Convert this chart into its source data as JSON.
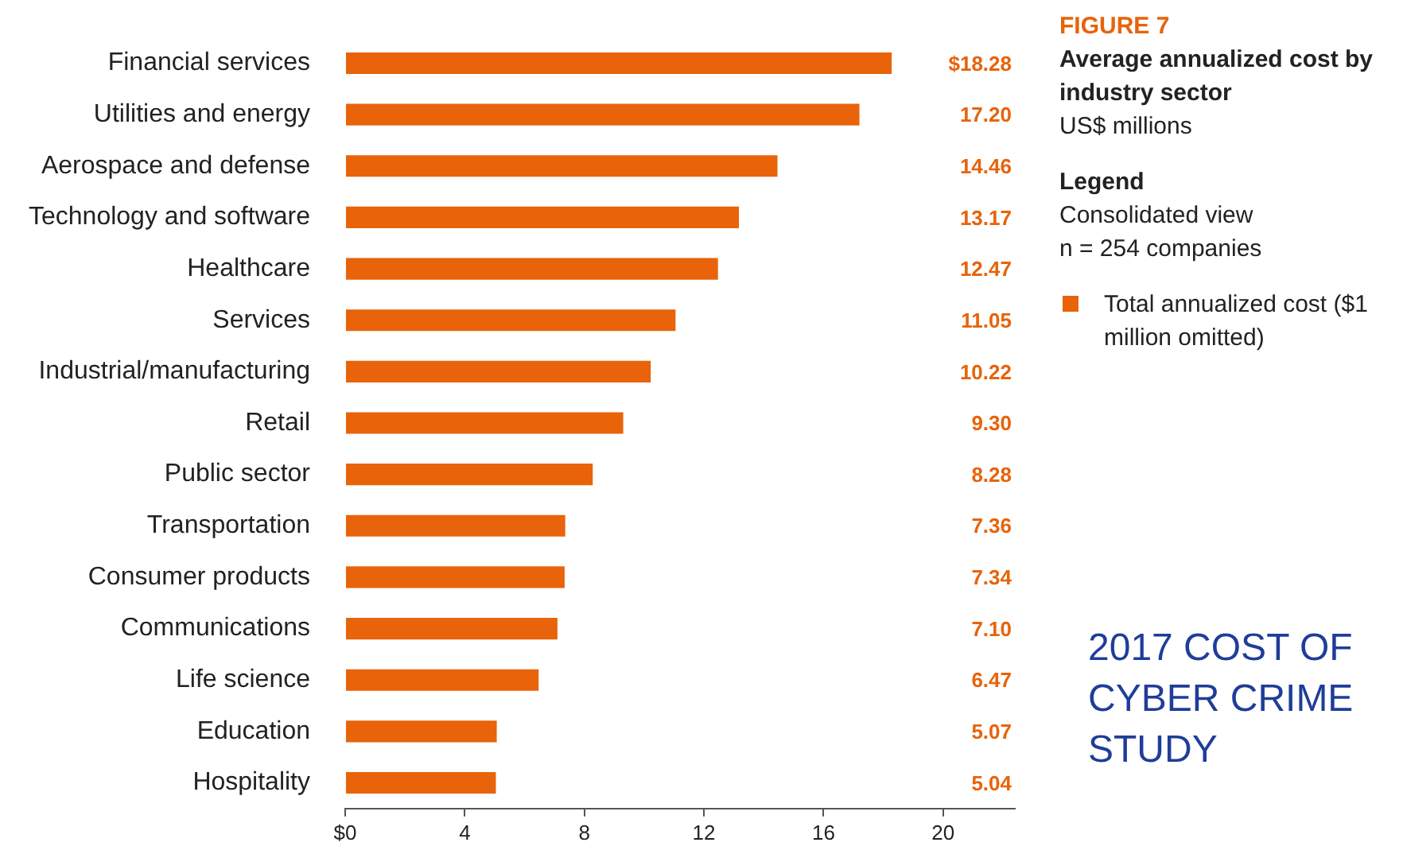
{
  "chart_data": {
    "type": "bar",
    "orientation": "horizontal",
    "title": "Average annualized cost by industry sector",
    "subtitle": "US$ millions",
    "categories": [
      "Financial services",
      "Utilities and energy",
      "Aerospace and defense",
      "Technology and software",
      "Healthcare",
      "Services",
      "Industrial/manufacturing",
      "Retail",
      "Public sector",
      "Transportation",
      "Consumer products",
      "Communications",
      "Life science",
      "Education",
      "Hospitality"
    ],
    "series": [
      {
        "name": "Total annualized cost ($1 million omitted)",
        "color": "#e8630a",
        "values": [
          18.28,
          17.2,
          14.46,
          13.17,
          12.47,
          11.05,
          10.22,
          9.3,
          8.28,
          7.36,
          7.34,
          7.1,
          6.47,
          5.07,
          5.04
        ],
        "value_labels": [
          "$18.28",
          "17.20",
          "14.46",
          "13.17",
          "12.47",
          "11.05",
          "10.22",
          "9.30",
          "8.28",
          "7.36",
          "7.34",
          "7.10",
          "6.47",
          "5.07",
          "5.04"
        ]
      }
    ],
    "xlim": [
      0,
      22.4
    ],
    "xticks": [
      {
        "value": 0,
        "label": "$0"
      },
      4,
      8,
      12,
      16,
      20
    ],
    "grid": false,
    "legend": "right",
    "annotations": [
      "FIGURE 7",
      "Legend",
      "Consolidated view",
      "n = 254 companies",
      "2017 COST OF CYBER CRIME STUDY"
    ]
  }
}
